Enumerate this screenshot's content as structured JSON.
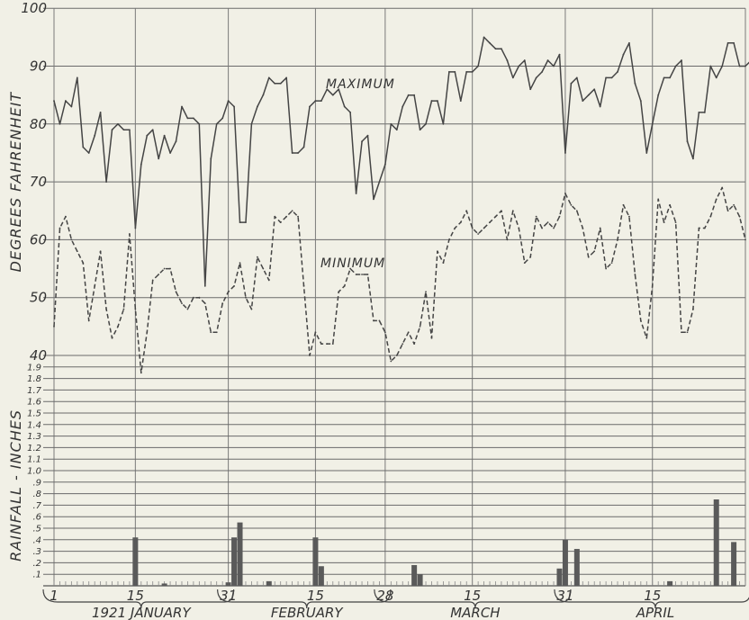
{
  "chart_data": [
    {
      "type": "line",
      "ylabel": "DEGREES FAHRENHEIT",
      "ylim": [
        40,
        100
      ],
      "y_ticks": [
        "40",
        "50",
        "60",
        "70",
        "80",
        "90",
        "100"
      ],
      "grid": true,
      "x_tick_labels": [
        "1",
        "15",
        "31",
        "15",
        "28",
        "15",
        "31",
        "15"
      ],
      "series": [
        {
          "name": "MAXIMUM",
          "style": "solid",
          "points": [
            [
              1,
              84
            ],
            [
              2,
              80
            ],
            [
              3,
              84
            ],
            [
              4,
              83
            ],
            [
              5,
              88
            ],
            [
              6,
              76
            ],
            [
              7,
              75
            ],
            [
              8,
              78
            ],
            [
              9,
              82
            ],
            [
              10,
              70
            ],
            [
              11,
              79
            ],
            [
              12,
              80
            ],
            [
              13,
              79
            ],
            [
              14,
              79
            ],
            [
              15,
              62
            ],
            [
              16,
              73
            ],
            [
              17,
              78
            ],
            [
              18,
              79
            ],
            [
              19,
              74
            ],
            [
              20,
              78
            ],
            [
              21,
              75
            ],
            [
              22,
              77
            ],
            [
              23,
              83
            ],
            [
              24,
              81
            ],
            [
              25,
              81
            ],
            [
              26,
              80
            ],
            [
              27,
              52
            ],
            [
              28,
              74
            ],
            [
              29,
              80
            ],
            [
              30,
              81
            ],
            [
              31,
              84
            ],
            [
              32,
              83
            ],
            [
              33,
              63
            ],
            [
              34,
              63
            ],
            [
              35,
              80
            ],
            [
              36,
              83
            ],
            [
              37,
              85
            ],
            [
              38,
              88
            ],
            [
              39,
              87
            ],
            [
              40,
              87
            ],
            [
              41,
              88
            ],
            [
              42,
              75
            ],
            [
              43,
              75
            ],
            [
              44,
              76
            ],
            [
              45,
              83
            ],
            [
              46,
              84
            ],
            [
              47,
              84
            ],
            [
              48,
              86
            ],
            [
              49,
              85
            ],
            [
              50,
              86
            ],
            [
              51,
              83
            ],
            [
              52,
              82
            ],
            [
              53,
              68
            ],
            [
              54,
              77
            ],
            [
              55,
              78
            ],
            [
              56,
              67
            ],
            [
              57,
              70
            ],
            [
              58,
              73
            ],
            [
              59,
              80
            ],
            [
              60,
              79
            ],
            [
              61,
              83
            ],
            [
              62,
              85
            ],
            [
              63,
              85
            ],
            [
              64,
              79
            ],
            [
              65,
              80
            ],
            [
              66,
              84
            ],
            [
              67,
              84
            ],
            [
              68,
              80
            ],
            [
              69,
              89
            ],
            [
              70,
              89
            ],
            [
              71,
              84
            ],
            [
              72,
              89
            ],
            [
              73,
              89
            ],
            [
              74,
              90
            ],
            [
              75,
              95
            ],
            [
              76,
              94
            ],
            [
              77,
              93
            ],
            [
              78,
              93
            ],
            [
              79,
              91
            ],
            [
              80,
              88
            ],
            [
              81,
              90
            ],
            [
              82,
              91
            ],
            [
              83,
              86
            ],
            [
              84,
              88
            ],
            [
              85,
              89
            ],
            [
              86,
              91
            ],
            [
              87,
              90
            ],
            [
              88,
              92
            ],
            [
              89,
              75
            ],
            [
              90,
              87
            ],
            [
              91,
              88
            ],
            [
              92,
              84
            ],
            [
              93,
              85
            ],
            [
              94,
              86
            ],
            [
              95,
              83
            ],
            [
              96,
              88
            ],
            [
              97,
              88
            ],
            [
              98,
              89
            ],
            [
              99,
              92
            ],
            [
              100,
              94
            ],
            [
              101,
              87
            ],
            [
              102,
              84
            ],
            [
              103,
              75
            ],
            [
              104,
              80
            ],
            [
              105,
              85
            ],
            [
              106,
              88
            ],
            [
              107,
              88
            ],
            [
              108,
              90
            ],
            [
              109,
              91
            ],
            [
              110,
              77
            ],
            [
              111,
              74
            ],
            [
              112,
              82
            ],
            [
              113,
              82
            ],
            [
              114,
              90
            ],
            [
              115,
              88
            ],
            [
              116,
              90
            ],
            [
              117,
              94
            ],
            [
              118,
              94
            ],
            [
              119,
              90
            ],
            [
              120,
              90
            ],
            [
              121,
              91
            ],
            [
              122,
              86
            ]
          ]
        },
        {
          "name": "MINIMUM",
          "style": "dashed",
          "points": [
            [
              1,
              45
            ],
            [
              2,
              62
            ],
            [
              3,
              64
            ],
            [
              4,
              60
            ],
            [
              5,
              58
            ],
            [
              6,
              56
            ],
            [
              7,
              46
            ],
            [
              8,
              52
            ],
            [
              9,
              58
            ],
            [
              10,
              48
            ],
            [
              11,
              43
            ],
            [
              12,
              45
            ],
            [
              13,
              48
            ],
            [
              14,
              61
            ],
            [
              15,
              48
            ],
            [
              16,
              37
            ],
            [
              17,
              44
            ],
            [
              18,
              53
            ],
            [
              19,
              54
            ],
            [
              20,
              55
            ],
            [
              21,
              55
            ],
            [
              22,
              51
            ],
            [
              23,
              49
            ],
            [
              24,
              48
            ],
            [
              25,
              50
            ],
            [
              26,
              50
            ],
            [
              27,
              49
            ],
            [
              28,
              44
            ],
            [
              29,
              44
            ],
            [
              30,
              49
            ],
            [
              31,
              51
            ],
            [
              32,
              52
            ],
            [
              33,
              56
            ],
            [
              34,
              50
            ],
            [
              35,
              48
            ],
            [
              36,
              57
            ],
            [
              37,
              55
            ],
            [
              38,
              53
            ],
            [
              39,
              64
            ],
            [
              40,
              63
            ],
            [
              41,
              64
            ],
            [
              42,
              65
            ],
            [
              43,
              64
            ],
            [
              44,
              52
            ],
            [
              45,
              40
            ],
            [
              46,
              44
            ],
            [
              47,
              42
            ],
            [
              48,
              42
            ],
            [
              49,
              42
            ],
            [
              50,
              51
            ],
            [
              51,
              52
            ],
            [
              52,
              55
            ],
            [
              53,
              54
            ],
            [
              54,
              54
            ],
            [
              55,
              54
            ],
            [
              56,
              46
            ],
            [
              57,
              46
            ],
            [
              58,
              44
            ],
            [
              59,
              39
            ],
            [
              60,
              40
            ],
            [
              61,
              42
            ],
            [
              62,
              44
            ],
            [
              63,
              42
            ],
            [
              64,
              45
            ],
            [
              65,
              51
            ],
            [
              66,
              43
            ],
            [
              67,
              58
            ],
            [
              68,
              56
            ],
            [
              69,
              60
            ],
            [
              70,
              62
            ],
            [
              71,
              63
            ],
            [
              72,
              65
            ],
            [
              73,
              62
            ],
            [
              74,
              61
            ],
            [
              75,
              62
            ],
            [
              76,
              63
            ],
            [
              77,
              64
            ],
            [
              78,
              65
            ],
            [
              79,
              60
            ],
            [
              80,
              65
            ],
            [
              81,
              62
            ],
            [
              82,
              56
            ],
            [
              83,
              57
            ],
            [
              84,
              64
            ],
            [
              85,
              62
            ],
            [
              86,
              63
            ],
            [
              87,
              62
            ],
            [
              88,
              64
            ],
            [
              89,
              68
            ],
            [
              90,
              66
            ],
            [
              91,
              65
            ],
            [
              92,
              62
            ],
            [
              93,
              57
            ],
            [
              94,
              58
            ],
            [
              95,
              62
            ],
            [
              96,
              55
            ],
            [
              97,
              56
            ],
            [
              98,
              60
            ],
            [
              99,
              66
            ],
            [
              100,
              64
            ],
            [
              101,
              54
            ],
            [
              102,
              46
            ],
            [
              103,
              43
            ],
            [
              104,
              52
            ],
            [
              105,
              67
            ],
            [
              106,
              63
            ],
            [
              107,
              66
            ],
            [
              108,
              63
            ],
            [
              109,
              44
            ],
            [
              110,
              44
            ],
            [
              111,
              48
            ],
            [
              112,
              62
            ],
            [
              113,
              62
            ],
            [
              114,
              64
            ],
            [
              115,
              67
            ],
            [
              116,
              69
            ],
            [
              117,
              65
            ],
            [
              118,
              66
            ],
            [
              119,
              64
            ],
            [
              120,
              60
            ]
          ]
        }
      ]
    },
    {
      "type": "bar",
      "ylabel": "RAINFALL - INCHES",
      "ylim": [
        0,
        2.0
      ],
      "y_ticks": [
        ".1",
        ".2",
        ".3",
        ".4",
        ".5",
        ".6",
        ".7",
        ".8",
        ".9",
        "1.0",
        "1.1",
        "1.2",
        "1.3",
        "1.4",
        "1.5",
        "1.6",
        "1.7",
        "1.8",
        "1.9"
      ],
      "x_tick_labels": [
        "1",
        "15",
        "31",
        "15",
        "28",
        "15",
        "31",
        "15"
      ],
      "month_labels": [
        "1921 JANUARY",
        "FEBRUARY",
        "MARCH",
        "APRIL"
      ],
      "bars": [
        [
          15,
          0.42
        ],
        [
          20,
          0.02
        ],
        [
          31,
          0.03
        ],
        [
          32,
          0.42
        ],
        [
          33,
          0.55
        ],
        [
          38,
          0.04
        ],
        [
          46,
          0.42
        ],
        [
          47,
          0.17
        ],
        [
          63,
          0.18
        ],
        [
          64,
          0.1
        ],
        [
          88,
          0.15
        ],
        [
          89,
          0.4
        ],
        [
          91,
          0.32
        ],
        [
          107,
          0.04
        ],
        [
          115,
          0.75
        ],
        [
          118,
          0.38
        ]
      ]
    }
  ]
}
